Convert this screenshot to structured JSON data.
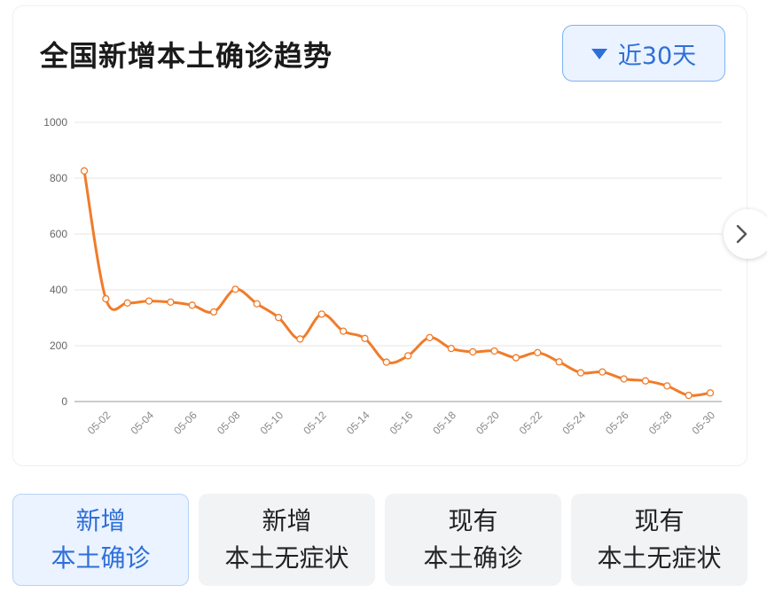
{
  "header": {
    "title": "全国新增本土确诊趋势",
    "range_label": "近30天"
  },
  "tabs": [
    {
      "line1": "新增",
      "line2": "本土确诊"
    },
    {
      "line1": "新增",
      "line2": "本土无症状"
    },
    {
      "line1": "现有",
      "line2": "本土确诊"
    },
    {
      "line1": "现有",
      "line2": "本土无症状"
    }
  ],
  "colors": {
    "line": "#f07c2a",
    "accent": "#2e6fd8",
    "grid": "#e6e6e6"
  },
  "icons": {
    "dropdown": "triangle-down-icon",
    "next": "chevron-right-icon"
  },
  "chart_data": {
    "type": "line",
    "title": "全国新增本土确诊趋势",
    "x": [
      "05-01",
      "05-02",
      "05-03",
      "05-04",
      "05-05",
      "05-06",
      "05-07",
      "05-08",
      "05-09",
      "05-10",
      "05-11",
      "05-12",
      "05-13",
      "05-14",
      "05-15",
      "05-16",
      "05-17",
      "05-18",
      "05-19",
      "05-20",
      "05-21",
      "05-22",
      "05-23",
      "05-24",
      "05-25",
      "05-26",
      "05-27",
      "05-28",
      "05-29",
      "05-30"
    ],
    "x_tick_labels": [
      "05-02",
      "05-04",
      "05-06",
      "05-08",
      "05-10",
      "05-12",
      "05-14",
      "05-16",
      "05-18",
      "05-20",
      "05-22",
      "05-24",
      "05-26",
      "05-28",
      "05-30"
    ],
    "y_ticks": [
      0,
      200,
      400,
      600,
      800,
      1000
    ],
    "ylim": [
      0,
      1000
    ],
    "series": [
      {
        "values": [
          826,
          368,
          353,
          360,
          356,
          345,
          321,
          402,
          350,
          301,
          224,
          313,
          252,
          226,
          141,
          164,
          229,
          190,
          178,
          181,
          157,
          175,
          142,
          103,
          106,
          81,
          74,
          56,
          22,
          31
        ]
      }
    ],
    "grid": "horizontal"
  }
}
